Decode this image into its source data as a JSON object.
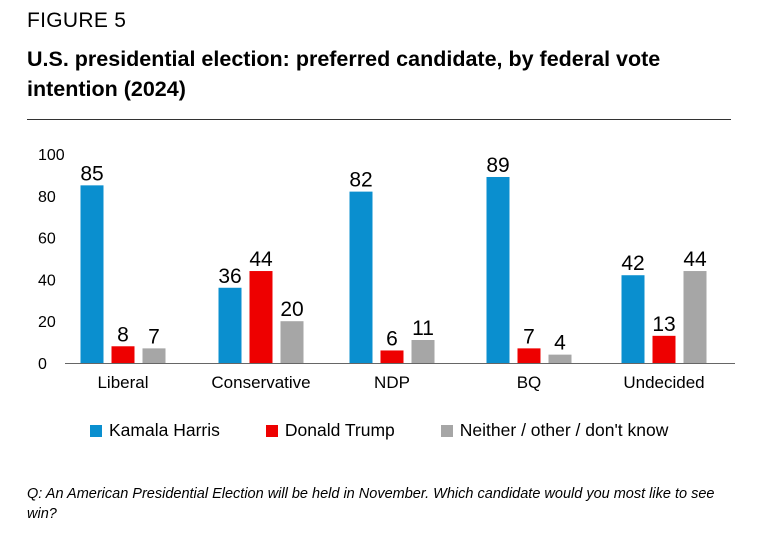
{
  "figure_label": "FIGURE 5",
  "title": "U.S. presidential election: preferred candidate, by federal vote intention (2024)",
  "footnote": "Q: An American Presidential Election will be held in November. Which candidate would you most like to see win?",
  "chart_data": {
    "type": "bar",
    "title": "U.S. presidential election: preferred candidate, by federal vote intention (2024)",
    "xlabel": "",
    "ylabel": "",
    "ylim": [
      0,
      100
    ],
    "yticks": [
      0,
      20,
      40,
      60,
      80,
      100
    ],
    "grid": false,
    "legend_position": "bottom",
    "categories": [
      "Liberal",
      "Conservative",
      "NDP",
      "BQ",
      "Undecided"
    ],
    "series": [
      {
        "name": "Kamala Harris",
        "color": "#0a8fcf",
        "values": [
          85,
          36,
          82,
          89,
          42
        ]
      },
      {
        "name": "Donald Trump",
        "color": "#ee0000",
        "values": [
          8,
          44,
          6,
          7,
          13
        ]
      },
      {
        "name": "Neither / other / don't know",
        "color": "#a6a6a6",
        "values": [
          7,
          20,
          11,
          4,
          44
        ]
      }
    ]
  }
}
